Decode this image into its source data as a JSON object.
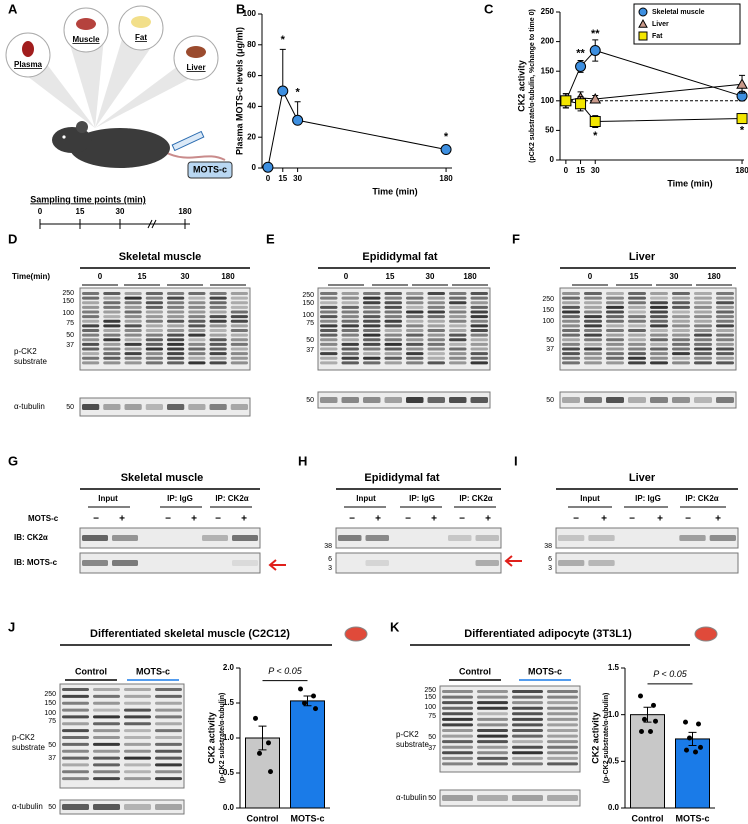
{
  "panel_labels": [
    "A",
    "B",
    "C",
    "D",
    "E",
    "F",
    "G",
    "H",
    "I",
    "J",
    "K"
  ],
  "panel_a": {
    "organs": [
      "Plasma",
      "Muscle",
      "Fat",
      "Liver"
    ],
    "drug": "MOTS-c",
    "timeline_title": "Sampling time points (min)",
    "timeline_ticks": [
      "0",
      "15",
      "30",
      "180"
    ]
  },
  "chart_data": [
    {
      "type": "line",
      "ylabel": [
        "Plasma MOTS-c levels (μg/ml)"
      ],
      "xlabel": "Time (min)",
      "x": [
        0,
        15,
        30,
        180
      ],
      "xlim": [
        -6,
        186
      ],
      "ylim": [
        0,
        100
      ],
      "xticks": [
        0,
        15,
        30,
        180
      ],
      "yticks": [
        0,
        20,
        40,
        60,
        80,
        100
      ],
      "error_direction": "up",
      "series": [
        {
          "color": "#3d8fe0",
          "marker": "circle",
          "values": [
            0.5,
            50,
            31,
            12
          ],
          "errors": [
            0,
            27,
            12,
            1.5
          ]
        }
      ],
      "annotations": [
        {
          "text": "*",
          "x": 15,
          "y": 83
        },
        {
          "text": "*",
          "x": 30,
          "y": 49
        },
        {
          "text": "*",
          "x": 180,
          "y": 20
        }
      ]
    },
    {
      "type": "line",
      "ylabel": [
        "CK2 activity",
        "(pCK2 substrate/α-tubulin, %change to time 0)"
      ],
      "xlabel": "Time (min)",
      "x": [
        0,
        15,
        30,
        180
      ],
      "xlim": [
        -6,
        182
      ],
      "ylim": [
        0,
        250
      ],
      "xticks": [
        0,
        15,
        30,
        180
      ],
      "yticks": [
        0,
        50,
        100,
        150,
        200,
        250
      ],
      "reference_line": 100,
      "legend": "top-right",
      "error_direction": "both",
      "series": [
        {
          "name": "Skeletal muscle",
          "color": "#3d8fe0",
          "marker": "circle",
          "values": [
            100,
            158,
            185,
            108
          ],
          "errors": [
            12,
            10,
            18,
            8
          ]
        },
        {
          "name": "Liver",
          "color": "#c9998a",
          "marker": "triangle",
          "values": [
            100,
            105,
            103,
            128
          ],
          "errors": [
            12,
            10,
            6,
            15
          ]
        },
        {
          "name": "Fat",
          "color": "#f3e600",
          "marker": "square",
          "values": [
            100,
            95,
            65,
            70
          ],
          "errors": [
            12,
            12,
            10,
            6
          ]
        }
      ],
      "annotations": [
        {
          "text": "**",
          "x": 15,
          "y": 180
        },
        {
          "text": "**",
          "x": 30,
          "y": 213
        },
        {
          "text": "*",
          "x": 30,
          "y": 40
        },
        {
          "text": "*",
          "x": 180,
          "y": 50
        }
      ]
    },
    {
      "type": "bar",
      "title": "Differentiated skeletal muscle (C2C12)",
      "ylabel": [
        "CK2 activity",
        "(p-CK2 substrate/α-tubulin)"
      ],
      "categories": [
        "Control",
        "MOTS-c"
      ],
      "values": [
        1.0,
        1.53
      ],
      "errors": [
        0.17,
        0.07
      ],
      "colors": [
        "#c8c8c8",
        "#1a7be8"
      ],
      "points": [
        [
          1.28,
          0.93,
          0.78,
          0.52
        ],
        [
          1.7,
          1.6,
          1.5,
          1.42
        ]
      ],
      "ylim": [
        0,
        2
      ],
      "yticks": [
        {
          "value": 0,
          "label": "0.0"
        },
        0.5,
        {
          "value": 1,
          "label": "1.0"
        },
        1.5,
        {
          "value": 2,
          "label": "2.0"
        }
      ],
      "significance": {
        "text": "P < 0.05",
        "y": 1.82
      },
      "blot": {
        "groups": [
          "Control",
          "MOTS-c"
        ],
        "mw_markers": [
          "250",
          "150",
          "100",
          "75",
          "50",
          "37"
        ],
        "row_labels": [
          "p-CK2",
          "substrate"
        ],
        "loading_label": "α-tubulin",
        "loading_mw": "50"
      }
    },
    {
      "type": "bar",
      "title": "Differentiated adipocyte (3T3L1)",
      "ylabel": [
        "CK2 activity",
        "(p-CK2 substrate/α-tubulin)"
      ],
      "categories": [
        "Control",
        "MOTS-c"
      ],
      "values": [
        1.0,
        0.74
      ],
      "errors": [
        0.08,
        0.07
      ],
      "colors": [
        "#c8c8c8",
        "#1a7be8"
      ],
      "points": [
        [
          1.2,
          1.1,
          0.95,
          0.93,
          0.82,
          0.82
        ],
        [
          0.92,
          0.9,
          0.75,
          0.65,
          0.62,
          0.6
        ]
      ],
      "ylim": [
        0,
        1.5
      ],
      "yticks": [
        {
          "value": 0,
          "label": "0.0"
        },
        0.5,
        {
          "value": 1,
          "label": "1.0"
        },
        1.5
      ],
      "significance": {
        "text": "P < 0.05",
        "y": 1.33
      },
      "blot": {
        "groups": [
          "Control",
          "MOTS-c"
        ],
        "mw_markers": [
          "250",
          "150",
          "100",
          "75",
          "50",
          "37"
        ],
        "row_labels": [
          "p-CK2",
          "substrate"
        ],
        "loading_label": "α-tubulin",
        "loading_mw": "50"
      }
    }
  ],
  "western_blots": [
    {
      "title": "Skeletal muscle",
      "time_label": "Time(min)",
      "timepoints": [
        "0",
        "15",
        "30",
        "180"
      ],
      "mw_markers": [
        "250",
        "150",
        "100",
        "75",
        "50",
        "37"
      ],
      "row_labels": [
        "p-CK2",
        "substrate"
      ],
      "loading_label": "α-tubulin",
      "loading_mw": "50"
    },
    {
      "title": "Epididymal fat",
      "timepoints": [
        "0",
        "15",
        "30",
        "180"
      ],
      "mw_markers": [
        "250",
        "150",
        "100",
        "75",
        "50",
        "37"
      ],
      "loading_mw": "50"
    },
    {
      "title": "Liver",
      "timepoints": [
        "0",
        "15",
        "30",
        "180"
      ],
      "mw_markers": [
        "250",
        "150",
        "100",
        "50",
        "37"
      ],
      "loading_mw": "50"
    }
  ],
  "ip_blots": [
    {
      "title": "Skeletal muscle",
      "groups": [
        "Input",
        "IP: IgG",
        "IP: CK2α"
      ],
      "treatment": "MOTS-c",
      "signs": [
        "−",
        "+"
      ],
      "rows": [
        "IB: CK2α",
        "IB: MOTS-c"
      ]
    },
    {
      "title": "Epididymal fat",
      "groups": [
        "Input",
        "IP: IgG",
        "IP: CK2α"
      ],
      "signs": [
        "−",
        "+"
      ],
      "mw_markers": [
        "38",
        "6",
        "3"
      ]
    },
    {
      "title": "Liver",
      "groups": [
        "Input",
        "IP: IgG",
        "IP: CK2α"
      ],
      "signs": [
        "−",
        "+"
      ],
      "mw_markers": [
        "38",
        "6",
        "3"
      ]
    }
  ]
}
